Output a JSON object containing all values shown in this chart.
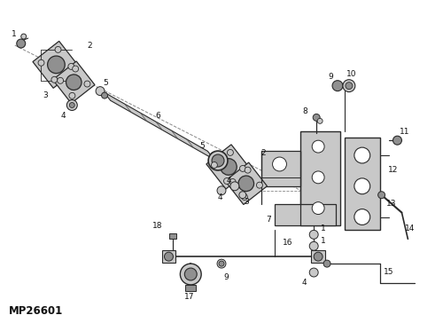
{
  "bg_color": "#ffffff",
  "part_number_label": "MP26601",
  "line_color": "#2a2a2a",
  "light_gray": "#c8c8c8",
  "mid_gray": "#909090",
  "dark_gray": "#505050",
  "fig_width": 5.0,
  "fig_height": 3.64,
  "dpi": 100,
  "label_fontsize": 6.5,
  "text_color": "#111111"
}
